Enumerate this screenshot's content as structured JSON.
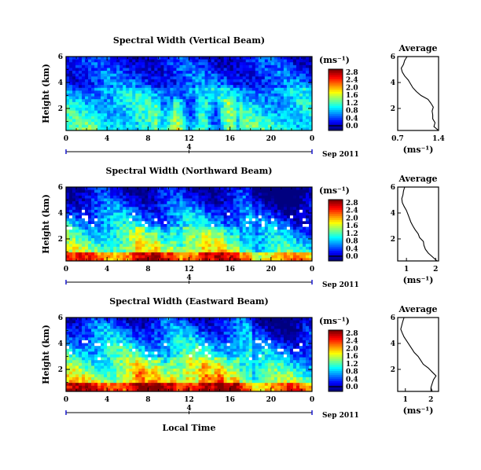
{
  "chart_data": [
    {
      "type": "heatmap",
      "title": "Spectral Width (Vertical Beam)",
      "ylabel": "Height (km)",
      "xlabel": "",
      "x_ticks": [
        "0",
        "4",
        "8",
        "12",
        "16",
        "20",
        "0"
      ],
      "y_ticks": [
        "2",
        "4",
        "6"
      ],
      "xlim": [
        0,
        24
      ],
      "ylim": [
        0.3,
        6
      ],
      "date_label": "Sep 2011",
      "day_marker": "4",
      "colorbar": {
        "unit": "(ms⁻¹)",
        "ticks": [
          "0.0",
          "0.4",
          "0.8",
          "1.2",
          "1.6",
          "2.0",
          "2.4",
          "2.8"
        ],
        "range": [
          0,
          3.0
        ]
      },
      "average": {
        "title": "Average",
        "xlabel": "(ms⁻¹)",
        "x_ticks": [
          "0.7",
          "1.4"
        ],
        "xlim": [
          0.7,
          1.4
        ],
        "y_ticks": [
          "2",
          "4",
          "6"
        ],
        "heights": [
          0.3,
          0.6,
          0.9,
          1.2,
          1.5,
          1.8,
          2.1,
          2.4,
          2.7,
          3.0,
          3.3,
          3.6,
          3.9,
          4.2,
          4.5,
          4.8,
          5.1,
          5.4,
          5.7,
          6.0
        ],
        "values": [
          1.4,
          1.32,
          1.34,
          1.3,
          1.3,
          1.29,
          1.31,
          1.27,
          1.22,
          1.1,
          1.02,
          0.96,
          0.92,
          0.88,
          0.82,
          0.78,
          0.76,
          0.8,
          0.82,
          0.86
        ]
      }
    },
    {
      "type": "heatmap",
      "title": "Spectral Width (Northward Beam)",
      "ylabel": "Height (km)",
      "xlabel": "",
      "x_ticks": [
        "0",
        "4",
        "8",
        "12",
        "16",
        "20",
        "0"
      ],
      "y_ticks": [
        "2",
        "4",
        "6"
      ],
      "xlim": [
        0,
        24
      ],
      "ylim": [
        0.3,
        6
      ],
      "date_label": "Sep 2011",
      "day_marker": "4",
      "colorbar": {
        "unit": "(ms⁻¹)",
        "ticks": [
          "0.0",
          "0.4",
          "0.8",
          "1.2",
          "1.6",
          "2.0",
          "2.4",
          "2.8"
        ],
        "range": [
          0,
          3.0
        ]
      },
      "average": {
        "title": "Average",
        "xlabel": "(ms⁻¹)",
        "x_ticks": [
          "1",
          "2"
        ],
        "xlim": [
          0.7,
          2.1
        ],
        "y_ticks": [
          "2",
          "4",
          "6"
        ],
        "heights": [
          0.3,
          0.6,
          0.9,
          1.2,
          1.5,
          1.8,
          2.1,
          2.4,
          2.7,
          3.0,
          3.3,
          3.6,
          3.9,
          4.2,
          4.5,
          4.8,
          5.1,
          5.4,
          5.7,
          6.0
        ],
        "values": [
          2.05,
          1.9,
          1.75,
          1.65,
          1.6,
          1.58,
          1.45,
          1.4,
          1.3,
          1.22,
          1.15,
          1.1,
          1.05,
          1.0,
          0.92,
          0.86,
          0.84,
          0.88,
          0.9,
          0.94
        ]
      }
    },
    {
      "type": "heatmap",
      "title": "Spectral Width (Eastward Beam)",
      "ylabel": "Height (km)",
      "xlabel": "Local Time",
      "x_ticks": [
        "0",
        "4",
        "8",
        "12",
        "16",
        "20",
        "0"
      ],
      "y_ticks": [
        "2",
        "4",
        "6"
      ],
      "xlim": [
        0,
        24
      ],
      "ylim": [
        0.3,
        6
      ],
      "date_label": "Sep 2011",
      "day_marker": "4",
      "colorbar": {
        "unit": "(ms⁻¹)",
        "ticks": [
          "0.0",
          "0.4",
          "0.8",
          "1.2",
          "1.6",
          "2.0",
          "2.4",
          "2.8"
        ],
        "range": [
          0,
          3.0
        ]
      },
      "average": {
        "title": "Average",
        "xlabel": "(ms⁻¹)",
        "x_ticks": [
          "1",
          "2"
        ],
        "xlim": [
          0.7,
          2.3
        ],
        "y_ticks": [
          "2",
          "4",
          "6"
        ],
        "heights": [
          0.3,
          0.6,
          0.9,
          1.2,
          1.5,
          1.8,
          2.1,
          2.4,
          2.7,
          3.0,
          3.3,
          3.6,
          3.9,
          4.2,
          4.5,
          4.8,
          5.1,
          5.4,
          5.7,
          6.0
        ],
        "values": [
          2.05,
          2.0,
          2.05,
          2.1,
          2.2,
          2.05,
          1.9,
          1.7,
          1.6,
          1.5,
          1.35,
          1.25,
          1.15,
          1.05,
          0.95,
          0.88,
          0.82,
          0.86,
          0.9,
          0.95
        ]
      }
    }
  ]
}
